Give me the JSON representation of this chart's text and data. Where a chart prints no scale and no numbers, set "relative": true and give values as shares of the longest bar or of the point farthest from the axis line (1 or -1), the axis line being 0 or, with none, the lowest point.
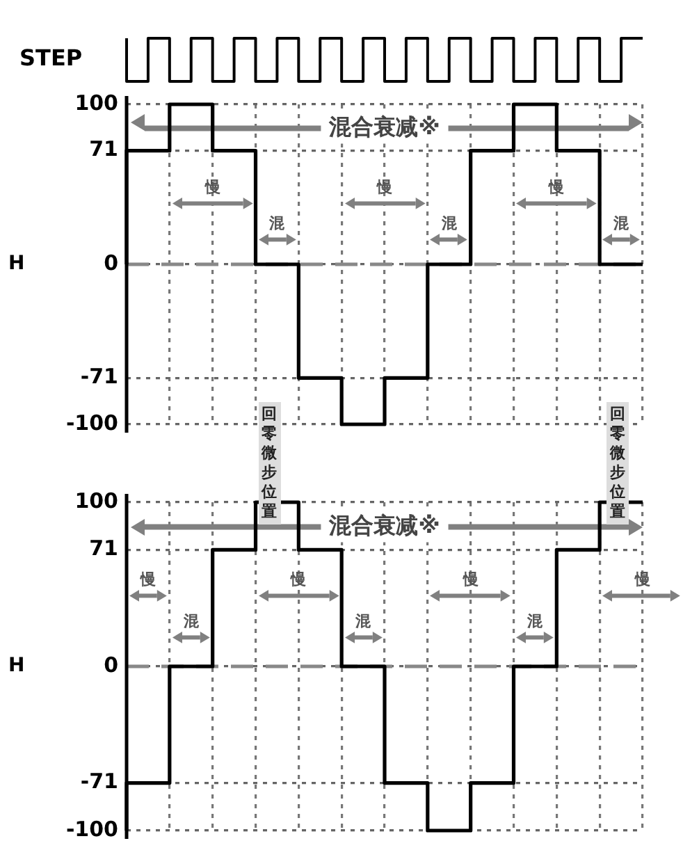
{
  "chart_data": [
    {
      "type": "step",
      "ylabel": "STEP",
      "relative": true,
      "tick_labels": false,
      "marker": "none",
      "categories": [
        null,
        null,
        null,
        null,
        null,
        null,
        null,
        null,
        null,
        null,
        null,
        null,
        null,
        null,
        null,
        null,
        null,
        null,
        null,
        null,
        null,
        null,
        null,
        null,
        null
      ],
      "series": [
        {
          "color": "#000000",
          "values": [
            1,
            0,
            1,
            0,
            1,
            0,
            1,
            0,
            1,
            0,
            1,
            0,
            1,
            0,
            1,
            0,
            1,
            0,
            1,
            0,
            1,
            0,
            1,
            0,
            1
          ]
        }
      ]
    },
    {
      "type": "step",
      "ylabel": "H",
      "tick_labels": "y",
      "grid": true,
      "marker": "none",
      "ylim": [
        -100,
        100
      ],
      "yticks": [
        -100,
        -71,
        0,
        71,
        100
      ],
      "categories": [
        null,
        null,
        null,
        null,
        null,
        null,
        null,
        null,
        null,
        null,
        null,
        null,
        null
      ],
      "series": [
        {
          "color": "#000000",
          "values": [
            0,
            71,
            100,
            71,
            0,
            -71,
            -100,
            -71,
            0,
            71,
            100,
            71,
            0
          ]
        }
      ],
      "ref_lines": [
        {
          "axis": "y",
          "value": 0,
          "color": "#888888",
          "line_style": "dashed"
        },
        {
          "axis": "y",
          "value": 85,
          "label": "混合衰减※",
          "color": "#808080"
        }
      ],
      "annotations": [
        "慢",
        "混",
        "慢",
        "混",
        "慢",
        "混"
      ]
    },
    {
      "type": "step",
      "ylabel": "H",
      "tick_labels": "y",
      "grid": true,
      "marker": "none",
      "ylim": [
        -100,
        100
      ],
      "yticks": [
        -100,
        -71,
        0,
        71,
        100
      ],
      "categories": [
        null,
        null,
        null,
        null,
        null,
        null,
        null,
        null,
        null,
        null,
        null,
        null,
        null
      ],
      "series": [
        {
          "color": "#000000",
          "values": [
            -100,
            -71,
            0,
            71,
            100,
            71,
            0,
            -71,
            -100,
            -71,
            0,
            71,
            100
          ]
        }
      ],
      "ref_lines": [
        {
          "axis": "y",
          "value": 0,
          "color": "#888888",
          "line_style": "dashed"
        },
        {
          "axis": "y",
          "value": 85,
          "label": "混合衰减※",
          "color": "#808080"
        }
      ],
      "annotations": [
        "慢",
        "混",
        "慢",
        "混",
        "慢",
        "混",
        "慢",
        "回零微步位置",
        "回零微步位置"
      ]
    }
  ]
}
